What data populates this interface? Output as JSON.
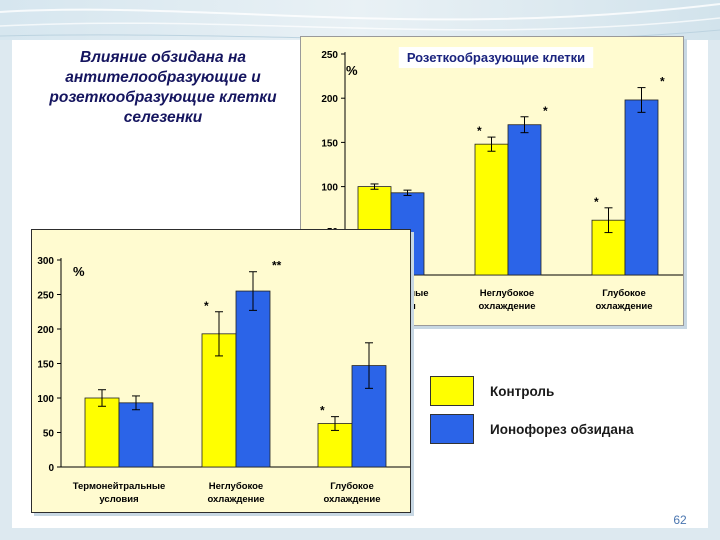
{
  "slide": {
    "title": "Влияние обзидана на антителообразующие и розеткообразующие клетки селезенки",
    "page_number": "62"
  },
  "legend": {
    "items": [
      {
        "label": "Контроль",
        "color": "#ffff00"
      },
      {
        "label": "Ионофорез обзидана",
        "color": "#2b64e8"
      }
    ]
  },
  "chart_data": [
    {
      "id": "rosette",
      "type": "bar",
      "title": "Розеткообразующие клетки",
      "ylabel": "%",
      "ylim": [
        0,
        250
      ],
      "yticks": [
        50,
        100,
        150,
        200,
        250
      ],
      "categories": [
        {
          "lines": [
            "Термонейтральные",
            "условия"
          ],
          "visible_lines": [
            "льные",
            "я"
          ]
        },
        {
          "lines": [
            "Неглубокое",
            "охлаждение"
          ]
        },
        {
          "lines": [
            "Глубокое",
            "охлаждение"
          ]
        }
      ],
      "series": [
        {
          "name": "Контроль",
          "color": "#ffff00",
          "values": [
            100,
            148,
            62
          ],
          "errors": [
            3,
            8,
            14
          ],
          "markers": [
            "",
            "*",
            "*"
          ]
        },
        {
          "name": "Ионофорез обзидана",
          "color": "#2b64e8",
          "values": [
            93,
            170,
            198
          ],
          "errors": [
            3,
            9,
            14
          ],
          "markers": [
            "",
            "*",
            "*"
          ]
        }
      ]
    },
    {
      "id": "antibody",
      "type": "bar",
      "title": "",
      "ylabel": "%",
      "ylim": [
        0,
        300
      ],
      "yticks": [
        0,
        50,
        100,
        150,
        200,
        250,
        300
      ],
      "categories": [
        {
          "lines": [
            "Термонейтральные",
            "условия"
          ]
        },
        {
          "lines": [
            "Неглубокое",
            "охлаждение"
          ]
        },
        {
          "lines": [
            "Глубокое",
            "охлаждение"
          ]
        }
      ],
      "series": [
        {
          "name": "Контроль",
          "color": "#ffff00",
          "values": [
            100,
            193,
            63
          ],
          "errors": [
            12,
            32,
            10
          ],
          "markers": [
            "",
            "*",
            "*"
          ]
        },
        {
          "name": "Ионофорез обзидана",
          "color": "#2b64e8",
          "values": [
            93,
            255,
            147
          ],
          "errors": [
            10,
            28,
            33
          ],
          "markers": [
            "",
            "**",
            ""
          ]
        }
      ]
    }
  ]
}
